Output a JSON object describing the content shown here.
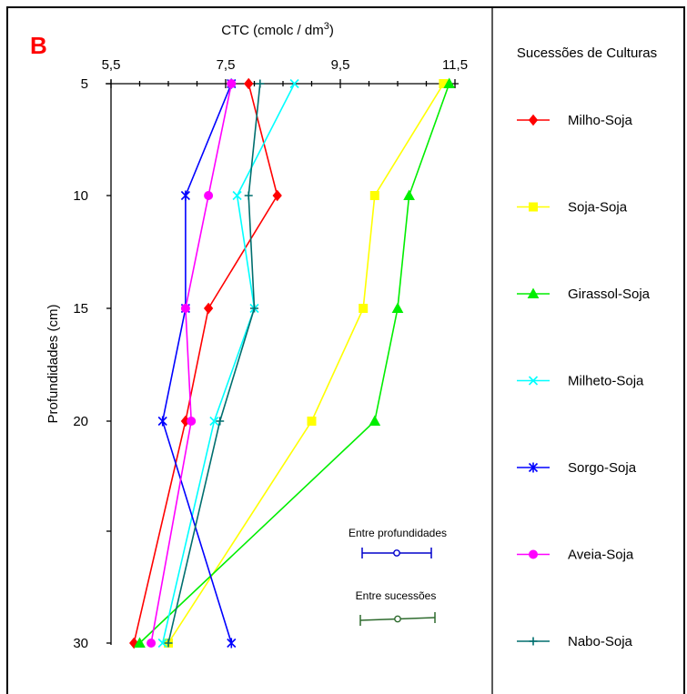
{
  "chart_data": {
    "type": "line",
    "panel_label": "B",
    "title": "",
    "xlabel": "CTC (cmolc / dm³)",
    "ylabel": "Profundidades (cm)",
    "xlim": [
      5.5,
      11.5
    ],
    "x_ticks": [
      "5,5",
      "7,5",
      "9,5",
      "11,5"
    ],
    "x_tick_values": [
      5.5,
      7.5,
      9.5,
      11.5
    ],
    "ylim": [
      5,
      30
    ],
    "y_ticks": [
      "5",
      "10",
      "15",
      "20",
      "30"
    ],
    "y_tick_values": [
      5,
      10,
      15,
      20,
      30
    ],
    "y_minor_ticks": [
      25
    ],
    "depths": [
      5,
      10,
      15,
      20,
      30
    ],
    "legend_title": "Sucessões de Culturas",
    "legend_position": "right",
    "series": [
      {
        "name": "Milho-Soja",
        "color": "#ff0000",
        "marker": "diamond",
        "values": [
          7.9,
          8.4,
          7.2,
          6.8,
          5.9
        ]
      },
      {
        "name": "Soja-Soja",
        "color": "#ffff00",
        "marker": "square",
        "values": [
          11.3,
          10.1,
          9.9,
          9.0,
          6.5
        ]
      },
      {
        "name": "Girassol-Soja",
        "color": "#00ee00",
        "marker": "triangle",
        "values": [
          11.4,
          10.7,
          10.5,
          10.1,
          6.0
        ]
      },
      {
        "name": "Milheto-Soja",
        "color": "#00ffff",
        "marker": "x",
        "values": [
          8.7,
          7.7,
          8.0,
          7.3,
          6.4
        ]
      },
      {
        "name": "Sorgo-Soja",
        "color": "#0000ff",
        "marker": "star",
        "values": [
          7.6,
          6.8,
          6.8,
          6.4,
          7.6
        ]
      },
      {
        "name": "Aveia-Soja",
        "color": "#ff00ff",
        "marker": "circle",
        "values": [
          7.6,
          7.2,
          6.8,
          6.9,
          6.2
        ]
      },
      {
        "name": "Nabo-Soja",
        "color": "#006f6f",
        "marker": "plus",
        "values": [
          8.1,
          7.9,
          8.0,
          7.4,
          6.5
        ]
      }
    ],
    "error_bars": [
      {
        "label": "Entre profundidades",
        "color": "#0000cc",
        "marker": "circle"
      },
      {
        "label": "Entre sucessões",
        "color": "#2e6b2e",
        "marker": "circle"
      }
    ]
  }
}
